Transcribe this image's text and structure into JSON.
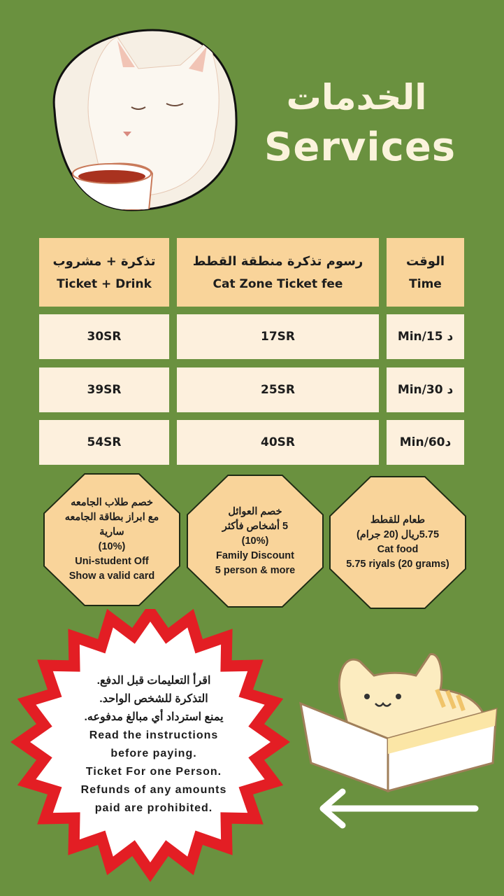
{
  "header": {
    "title_ar": "الخدمات",
    "title_en": "Services"
  },
  "colors": {
    "background": "#6a913f",
    "header_cell": "#f9d49a",
    "body_cell": "#fdf0dd",
    "badge": "#f9d49a",
    "burst": "#e31e24"
  },
  "table": {
    "headers": [
      {
        "ar": "تذكرة + مشروب",
        "en": "Ticket + Drink"
      },
      {
        "ar": "رسوم تذكرة منطقة القطط",
        "en": "Cat Zone Ticket fee"
      },
      {
        "ar": "الوقت",
        "en": "Time"
      }
    ],
    "rows": [
      {
        "drink": "30SR",
        "fee": "17SR",
        "time": "Min/15 د"
      },
      {
        "drink": "39SR",
        "fee": "25SR",
        "time": "Min/30 د"
      },
      {
        "drink": "54SR",
        "fee": "40SR",
        "time": "Min/60د"
      }
    ]
  },
  "badges": [
    {
      "lines_ar": [
        "خصم طلاب الجامعه",
        "مع ابراز بطاقة الجامعه",
        "سارية"
      ],
      "lines_en": [
        "(10%)",
        "Uni-student Off",
        "Show a valid card"
      ]
    },
    {
      "lines_ar": [
        "خصم العوائل",
        "5 أشخاص فأكثر"
      ],
      "lines_en": [
        "(10%)",
        "Family Discount",
        "5 person & more"
      ]
    },
    {
      "lines_ar": [
        "طعام للقطط",
        "5.75ريال (20 جرام)"
      ],
      "lines_en": [
        "Cat food",
        "5.75 riyals (20 grams)"
      ]
    }
  ],
  "notice": {
    "lines_ar": [
      "اقرأ التعليمات قبل الدفع.",
      "التذكرة للشخص الواحد.",
      "يمنع استرداد أي مبالغ مدفوعه."
    ],
    "lines_en": [
      "Read the instructions",
      "before paying.",
      "Ticket For one Person.",
      "Refunds of any amounts",
      "paid are prohibited."
    ]
  },
  "icons": {
    "top": "cat-with-tea-illustration",
    "bottom": "cat-in-box-illustration",
    "arrow": "arrow-left-icon"
  }
}
